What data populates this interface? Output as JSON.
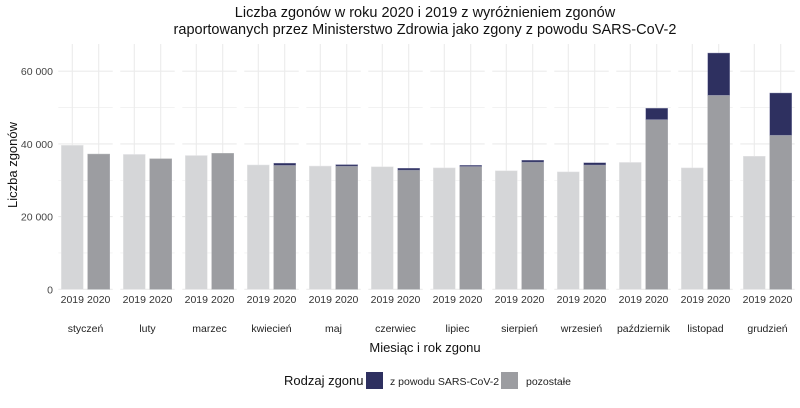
{
  "chart_data": {
    "type": "bar",
    "title": [
      "Liczba zgonów w roku 2020 i 2019 z wyróżnieniem zgonów",
      "raportowanych przez Ministerstwo Zdrowia jako zgony z powodu SARS-CoV-2"
    ],
    "xlabel": "Miesiąc i rok zgonu",
    "ylabel": "Liczba zgonów",
    "ylim": [
      0,
      68000
    ],
    "yticks": [
      0,
      20000,
      40000,
      60000
    ],
    "ytick_labels": [
      "0",
      "20 000",
      "40 000",
      "60 000"
    ],
    "years": [
      "2019",
      "2020"
    ],
    "categories": [
      "styczeń",
      "luty",
      "marzec",
      "kwiecień",
      "maj",
      "czerwiec",
      "lipiec",
      "sierpień",
      "wrzesień",
      "październik",
      "listopad",
      "grudzień"
    ],
    "series": [
      {
        "name": "2019",
        "values": [
          39600,
          37100,
          36800,
          34200,
          33900,
          33700,
          33400,
          32600,
          32300,
          34900,
          33400,
          36600
        ]
      },
      {
        "name": "pozostałe",
        "year": "2020",
        "values": [
          37200,
          35900,
          37400,
          34100,
          33900,
          32800,
          33800,
          35000,
          34200,
          46700,
          53400,
          42400
        ]
      },
      {
        "name": "z powodu SARS-CoV-2",
        "year": "2020",
        "values": [
          0,
          0,
          0,
          600,
          400,
          500,
          300,
          500,
          600,
          3100,
          11600,
          11600
        ]
      }
    ],
    "grid": true,
    "legend": {
      "title": "Rodzaj zgonu",
      "position": "bottom",
      "items": [
        "z powodu SARS-CoV-2",
        "pozostałe"
      ]
    },
    "colors": {
      "covid": "#2e3060",
      "other_2020": "#9c9da1",
      "year_2019": "#d5d6d8"
    }
  }
}
